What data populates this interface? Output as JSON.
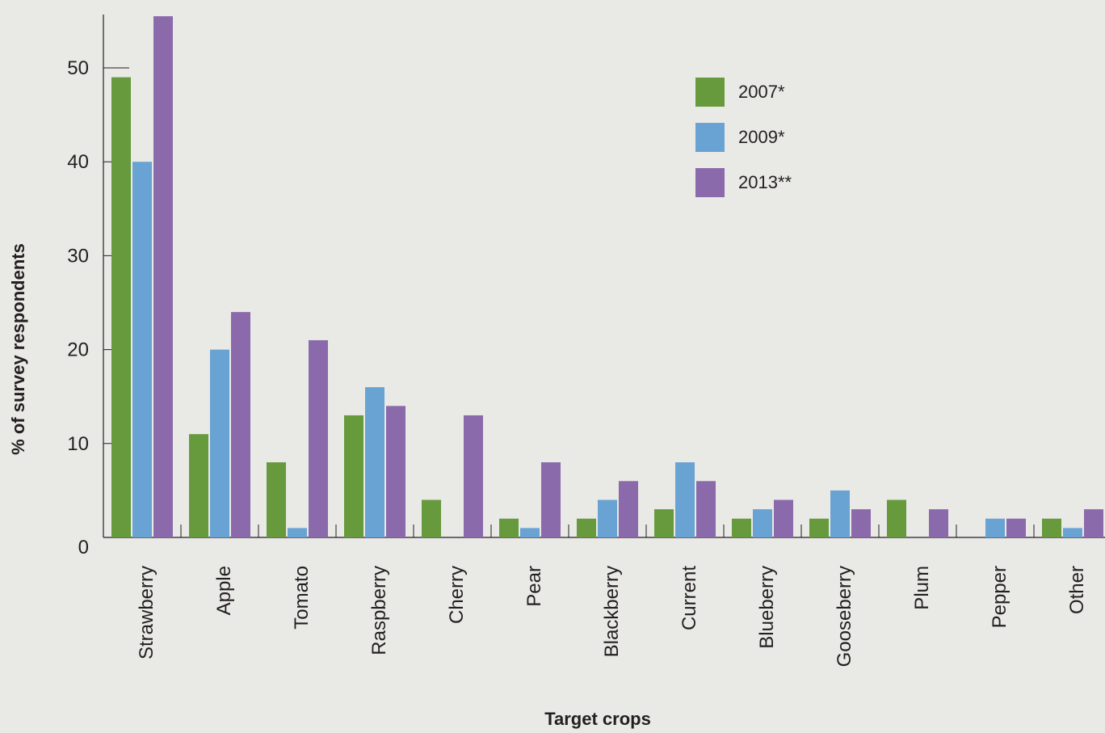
{
  "chart_data": {
    "type": "bar",
    "title": "",
    "xlabel": "Target crops",
    "ylabel": "% of survey respondents",
    "ylim": [
      0,
      55
    ],
    "yticks": [
      0,
      10,
      20,
      30,
      40,
      50
    ],
    "grid": false,
    "legend_position": "top-right",
    "categories": [
      "Strawberry",
      "Apple",
      "Tomato",
      "Raspberry",
      "Cherry",
      "Pear",
      "Blackberry",
      "Current",
      "Blueberry",
      "Gooseberry",
      "Plum",
      "Pepper",
      "Other"
    ],
    "series": [
      {
        "name": "2007*",
        "color": "#669a3d",
        "values": [
          49,
          11,
          8,
          13,
          4,
          2,
          2,
          3,
          2,
          2,
          4,
          0,
          2
        ]
      },
      {
        "name": "2009*",
        "color": "#69a3d3",
        "values": [
          40,
          20,
          1,
          16,
          0,
          1,
          4,
          8,
          3,
          5,
          0,
          2,
          1
        ]
      },
      {
        "name": "2013**",
        "color": "#8b6aac",
        "values": [
          55.5,
          24,
          21,
          14,
          13,
          8,
          6,
          6,
          4,
          3,
          3,
          2,
          3
        ]
      }
    ]
  }
}
